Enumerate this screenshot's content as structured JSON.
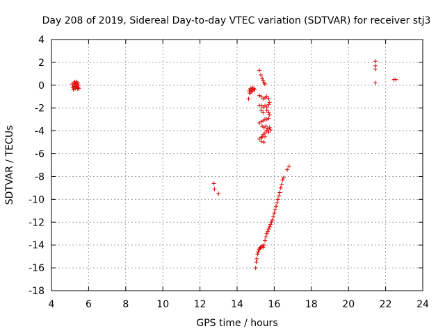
{
  "chart_data": {
    "type": "scatter",
    "title": "Day 208 of 2019, Sidereal Day-to-day VTEC variation (SDTVAR) for receiver stj3",
    "xlabel": "GPS time / hours",
    "ylabel": "SDTVAR / TECUs",
    "xlim": [
      4,
      24
    ],
    "ylim": [
      -18,
      4
    ],
    "xticks": [
      4,
      6,
      8,
      10,
      12,
      14,
      16,
      18,
      20,
      22,
      24
    ],
    "yticks": [
      4,
      2,
      0,
      -2,
      -4,
      -6,
      -8,
      -10,
      -12,
      -14,
      -16,
      -18
    ],
    "grid": true,
    "marker": "+",
    "color": "#e00000",
    "series": [
      {
        "name": "SDTVAR",
        "points": [
          [
            5.12,
            0.1
          ],
          [
            5.15,
            -0.2
          ],
          [
            5.18,
            -0.4
          ],
          [
            5.2,
            0.0
          ],
          [
            5.22,
            -0.1
          ],
          [
            5.24,
            0.2
          ],
          [
            5.26,
            0.3
          ],
          [
            5.28,
            -0.3
          ],
          [
            5.3,
            0.1
          ],
          [
            5.32,
            -0.2
          ],
          [
            5.34,
            0.3
          ],
          [
            5.36,
            -0.1
          ],
          [
            5.38,
            0.0
          ],
          [
            5.4,
            -0.3
          ],
          [
            5.42,
            0.2
          ],
          [
            5.44,
            -0.2
          ],
          [
            5.46,
            0.0
          ],
          [
            5.48,
            -0.3
          ],
          [
            12.75,
            -8.6
          ],
          [
            12.78,
            -9.1
          ],
          [
            13.0,
            -9.5
          ],
          [
            14.62,
            -1.2
          ],
          [
            14.65,
            -0.5
          ],
          [
            14.68,
            -0.7
          ],
          [
            14.72,
            -0.3
          ],
          [
            14.75,
            -0.6
          ],
          [
            14.78,
            -0.4
          ],
          [
            14.82,
            -0.2
          ],
          [
            14.85,
            -0.5
          ],
          [
            14.9,
            -0.3
          ],
          [
            14.95,
            -0.4
          ],
          [
            15.0,
            -16.0
          ],
          [
            15.03,
            -15.5
          ],
          [
            15.06,
            -15.2
          ],
          [
            15.1,
            -14.8
          ],
          [
            15.14,
            -14.6
          ],
          [
            15.18,
            -14.4
          ],
          [
            15.22,
            -14.3
          ],
          [
            15.26,
            -14.2
          ],
          [
            15.3,
            -14.2
          ],
          [
            15.35,
            -14.1
          ],
          [
            15.4,
            -14.2
          ],
          [
            15.45,
            -14.0
          ],
          [
            15.5,
            -13.6
          ],
          [
            15.55,
            -13.3
          ],
          [
            15.6,
            -13.0
          ],
          [
            15.65,
            -12.8
          ],
          [
            15.7,
            -12.6
          ],
          [
            15.75,
            -12.4
          ],
          [
            15.8,
            -12.2
          ],
          [
            15.85,
            -12.0
          ],
          [
            15.9,
            -11.8
          ],
          [
            15.95,
            -11.5
          ],
          [
            16.0,
            -11.2
          ],
          [
            16.05,
            -10.9
          ],
          [
            16.1,
            -10.6
          ],
          [
            16.15,
            -10.3
          ],
          [
            16.2,
            -10.0
          ],
          [
            16.25,
            -9.7
          ],
          [
            16.3,
            -9.4
          ],
          [
            16.35,
            -9.0
          ],
          [
            16.4,
            -8.7
          ],
          [
            16.45,
            -8.3
          ],
          [
            16.5,
            -8.1
          ],
          [
            16.7,
            -7.4
          ],
          [
            16.8,
            -7.1
          ],
          [
            15.2,
            1.3
          ],
          [
            15.28,
            0.9
          ],
          [
            15.35,
            0.6
          ],
          [
            15.4,
            0.4
          ],
          [
            15.45,
            0.2
          ],
          [
            15.5,
            0.1
          ],
          [
            15.2,
            -0.9
          ],
          [
            15.3,
            -1.0
          ],
          [
            15.4,
            -1.2
          ],
          [
            15.5,
            -1.1
          ],
          [
            15.6,
            -1.0
          ],
          [
            15.7,
            -1.2
          ],
          [
            15.75,
            -1.5
          ],
          [
            15.7,
            -1.7
          ],
          [
            15.6,
            -1.9
          ],
          [
            15.5,
            -1.8
          ],
          [
            15.4,
            -1.9
          ],
          [
            15.3,
            -1.8
          ],
          [
            15.2,
            -1.8
          ],
          [
            15.3,
            -2.2
          ],
          [
            15.4,
            -2.4
          ],
          [
            15.6,
            -2.2
          ],
          [
            15.7,
            -2.4
          ],
          [
            15.75,
            -2.6
          ],
          [
            15.7,
            -2.9
          ],
          [
            15.6,
            -3.0
          ],
          [
            15.5,
            -3.0
          ],
          [
            15.4,
            -3.1
          ],
          [
            15.3,
            -3.2
          ],
          [
            15.2,
            -3.3
          ],
          [
            15.35,
            -3.6
          ],
          [
            15.45,
            -3.7
          ],
          [
            15.55,
            -3.6
          ],
          [
            15.65,
            -3.8
          ],
          [
            15.75,
            -3.7
          ],
          [
            15.8,
            -3.9
          ],
          [
            15.7,
            -4.1
          ],
          [
            15.6,
            -4.0
          ],
          [
            15.5,
            -4.2
          ],
          [
            15.4,
            -4.3
          ],
          [
            15.35,
            -4.5
          ],
          [
            15.3,
            -4.6
          ],
          [
            15.2,
            -4.7
          ],
          [
            15.3,
            -4.9
          ],
          [
            15.45,
            -5.0
          ],
          [
            15.5,
            -4.5
          ],
          [
            21.45,
            2.1
          ],
          [
            21.45,
            1.7
          ],
          [
            21.45,
            1.4
          ],
          [
            21.45,
            0.2
          ],
          [
            22.45,
            0.5
          ],
          [
            22.55,
            0.5
          ]
        ]
      }
    ]
  }
}
